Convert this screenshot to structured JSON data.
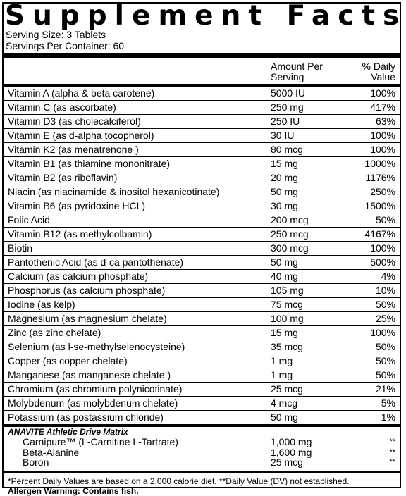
{
  "title": "Supplement Facts",
  "serving_size": "Serving Size: 3 Tablets",
  "servings_per_container": "Servings Per Container: 60",
  "header": {
    "amount_line1": "Amount Per",
    "amount_line2": "Serving",
    "dv_line1": "% Daily",
    "dv_line2": "Value"
  },
  "nutrients": [
    {
      "name": "Vitamin A (alpha & beta carotene)",
      "amount": "5000 IU",
      "dv": "100%"
    },
    {
      "name": "Vitamin C (as ascorbate)",
      "amount": "250 mg",
      "dv": "417%"
    },
    {
      "name": "Vitamin D3 (as cholecalciferol)",
      "amount": "250 IU",
      "dv": "63%"
    },
    {
      "name": "Vitamin E (as d-alpha tocopherol)",
      "amount": "30 IU",
      "dv": "100%"
    },
    {
      "name": "Vitamin K2 (as menatrenone )",
      "amount": "80 mcg",
      "dv": "100%"
    },
    {
      "name": "Vitamin B1 (as thiamine mononitrate)",
      "amount": "15 mg",
      "dv": "1000%"
    },
    {
      "name": "Vitamin B2 (as riboflavin)",
      "amount": "20 mg",
      "dv": "1176%"
    },
    {
      "name": "Niacin (as niacinamide & inositol hexanicotinate)",
      "amount": "50 mg",
      "dv": "250%"
    },
    {
      "name": "Vitamin B6 (as pyridoxine HCL)",
      "amount": "30 mg",
      "dv": "1500%"
    },
    {
      "name": "Folic Acid",
      "amount": "200 mcg",
      "dv": "50%"
    },
    {
      "name": "Vitamin B12 (as methylcolbamin)",
      "amount": "250 mcg",
      "dv": "4167%"
    },
    {
      "name": "Biotin",
      "amount": "300 mcg",
      "dv": "100%"
    },
    {
      "name": "Pantothenic Acid (as d-ca pantothenate)",
      "amount": "50 mg",
      "dv": "500%"
    },
    {
      "name": "Calcium (as calcium phosphate)",
      "amount": "40 mg",
      "dv": "4%"
    },
    {
      "name": "Phosphorus (as calcium phosphate)",
      "amount": "105 mg",
      "dv": "10%"
    },
    {
      "name": "Iodine (as kelp)",
      "amount": "75 mcg",
      "dv": "50%"
    },
    {
      "name": "Magnesium (as magnesium  chelate)",
      "amount": "100 mg",
      "dv": "25%"
    },
    {
      "name": "Zinc (as zinc chelate)",
      "amount": "15 mg",
      "dv": "100%"
    },
    {
      "name": "Selenium (as l-se-methylselenocysteine)",
      "amount": "35 mcg",
      "dv": "50%"
    },
    {
      "name": "Copper (as copper chelate)",
      "amount": "1 mg",
      "dv": "50%"
    },
    {
      "name": "Manganese (as manganese chelate )",
      "amount": "1 mg",
      "dv": "50%"
    },
    {
      "name": "Chromium (as chromium polynicotinate)",
      "amount": "25 mcg",
      "dv": "21%"
    },
    {
      "name": "Molybdenum (as molybdenum chelate)",
      "amount": "4 mcg",
      "dv": "5%"
    },
    {
      "name": "Potassium (as postassium chloride)",
      "amount": "50 mg",
      "dv": "1%"
    }
  ],
  "blend": {
    "title": "ANAVITE Athletic Drive Matrix",
    "items": [
      {
        "name": "Carnipure™ (L-Carnitine L-Tartrate)",
        "amount": "1,000 mg",
        "dv": "**"
      },
      {
        "name": "Beta-Alanine",
        "amount": "1,600 mg",
        "dv": "**"
      },
      {
        "name": "Boron",
        "amount": "25 mcg",
        "dv": "**"
      }
    ]
  },
  "footnote": "*Percent Daily Values are based on a 2,000 calorie diet. **Daily Value (DV) not established.",
  "allergen": "Allergen Warning: Contains fish."
}
